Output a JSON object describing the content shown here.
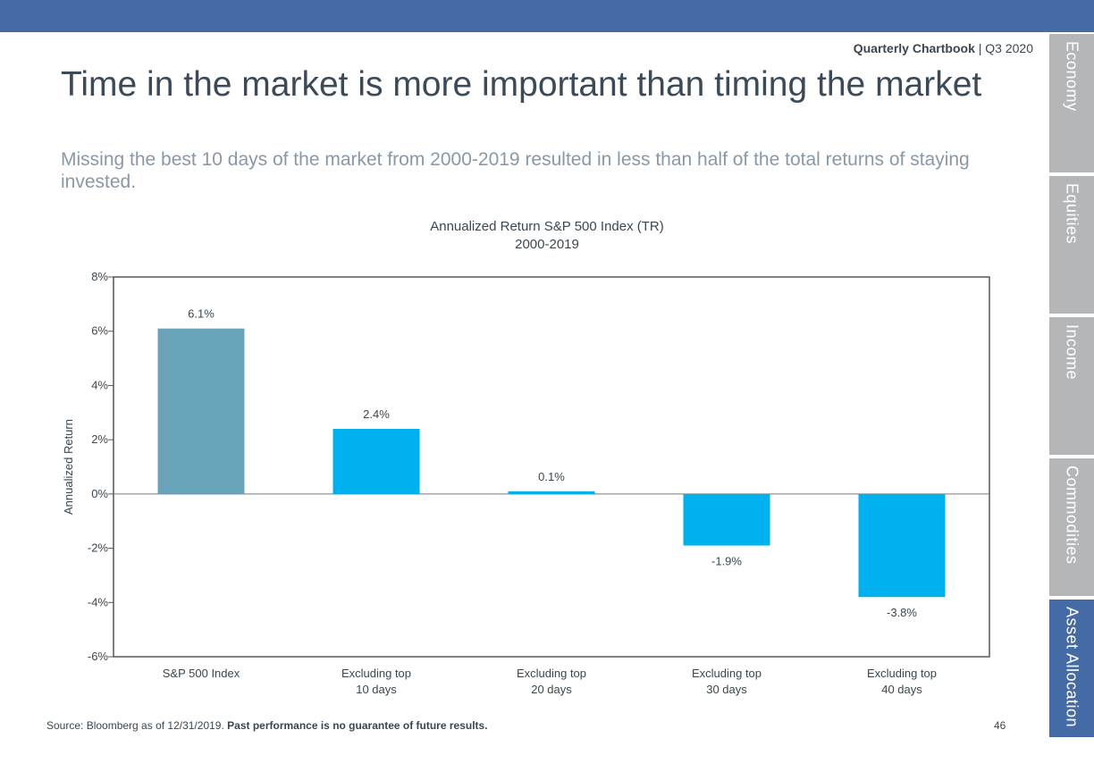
{
  "header": {
    "chartbook_label": "Quarterly Chartbook",
    "separator": " | ",
    "quarter": "Q3 2020"
  },
  "title": "Time in the market is more important than timing the market",
  "subtitle": "Missing the best 10 days of the market from 2000-2019 resulted in less than half of the total returns of staying invested.",
  "side_tabs": [
    {
      "label": "Economy",
      "active": false
    },
    {
      "label": "Equities",
      "active": false
    },
    {
      "label": "Income",
      "active": false
    },
    {
      "label": "Commodities",
      "active": false
    },
    {
      "label": "Asset Allocation",
      "active": true
    }
  ],
  "colors": {
    "top_bar": "#456ba7",
    "first_bar": "#6aa4ba",
    "other_bars": "#00b1ef",
    "tab_inactive": "#b4b6b8",
    "tab_active": "#456ba7"
  },
  "chart_data": {
    "type": "bar",
    "title": "Annualized Return S&P 500 Index (TR)",
    "subtitle": "2000-2019",
    "ylabel": "Annualized Return",
    "xlabel": "",
    "categories": [
      [
        "S&P 500 Index"
      ],
      [
        "Excluding top",
        "10 days"
      ],
      [
        "Excluding top",
        "20 days"
      ],
      [
        "Excluding top",
        "30 days"
      ],
      [
        "Excluding top",
        "40 days"
      ]
    ],
    "values": [
      6.1,
      2.4,
      0.1,
      -1.9,
      -3.8
    ],
    "data_labels": [
      "6.1%",
      "2.4%",
      "0.1%",
      "-1.9%",
      "-3.8%"
    ],
    "ylim": [
      -6,
      8
    ],
    "yticks": [
      8,
      6,
      4,
      2,
      0,
      -2,
      -4,
      -6
    ],
    "ytick_labels": [
      "8%",
      "6%",
      "4%",
      "2%",
      "0%",
      "-2%",
      "-4%",
      "-6%"
    ],
    "grid": false,
    "legend": false
  },
  "footer": {
    "source": "Source: Bloomberg as of 12/31/2019. ",
    "disclaimer": "Past performance is no guarantee of future results.",
    "page_number": "46"
  }
}
